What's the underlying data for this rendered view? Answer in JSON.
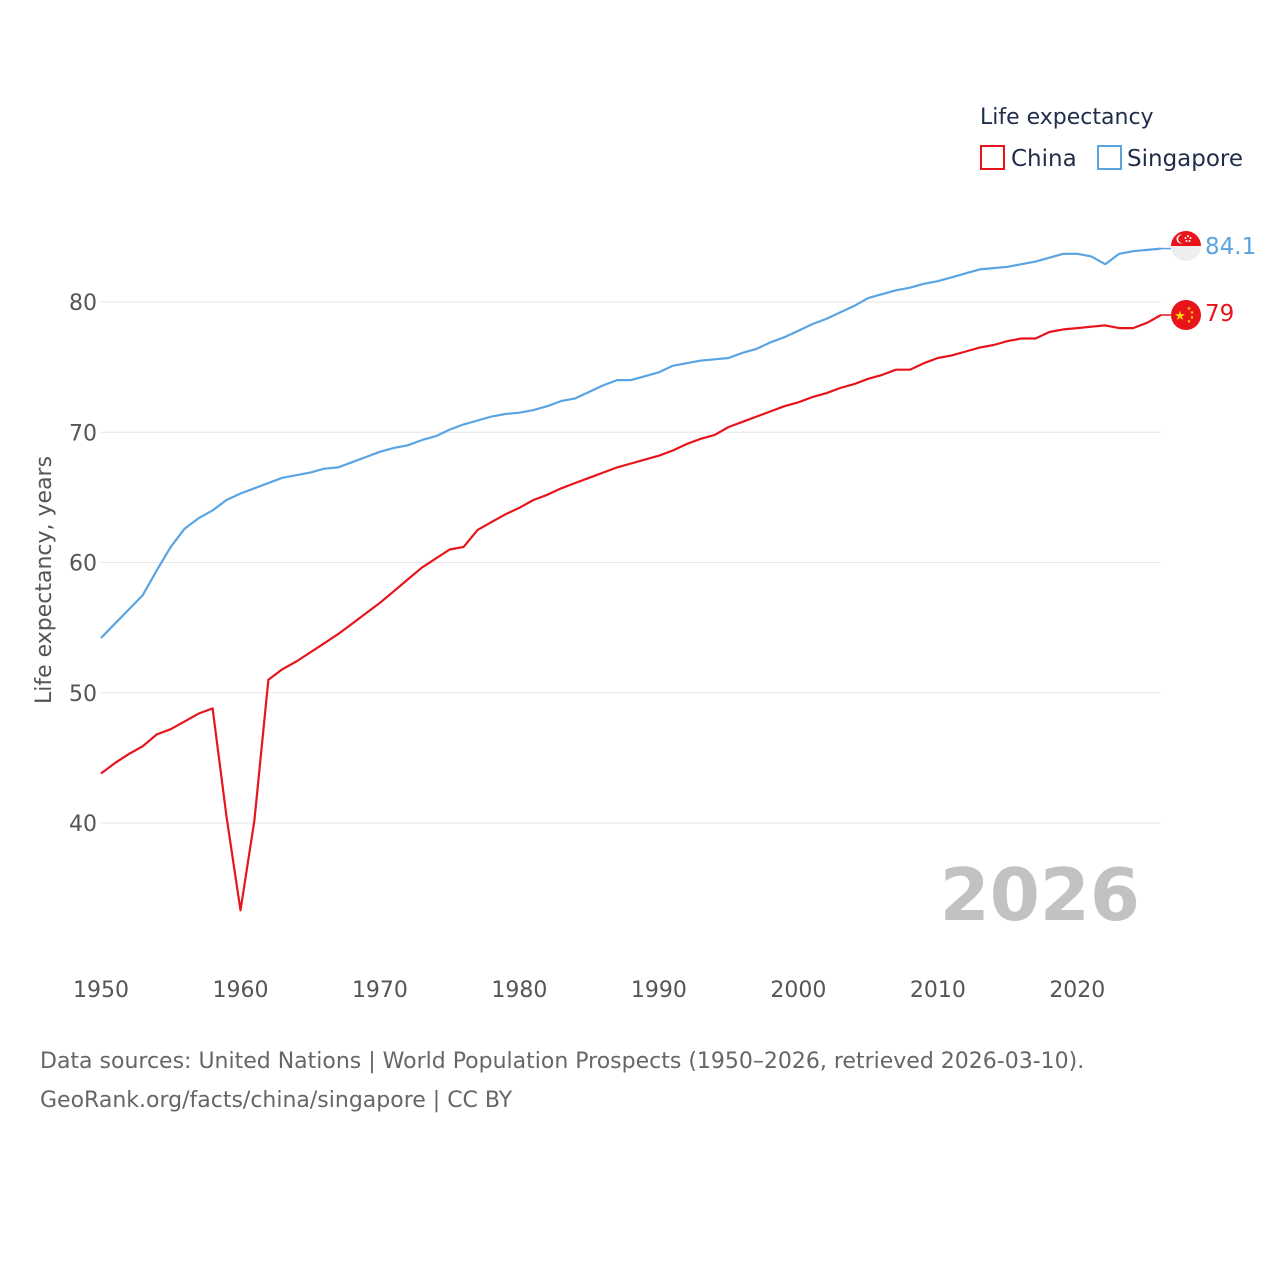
{
  "colors": {
    "china": "#e8141b",
    "singapore": "#5aa4e2",
    "grid": "#e6e6e6",
    "text": "#555555"
  },
  "chart_data": {
    "type": "line",
    "title": "",
    "xlabel": "",
    "ylabel": "Life expectancy, years",
    "xlim": [
      1950,
      2026
    ],
    "ylim": [
      32,
      86
    ],
    "x_ticks": [
      1950,
      1960,
      1970,
      1980,
      1990,
      2000,
      2010,
      2020
    ],
    "x_tick_labels": [
      "1950",
      "1960",
      "1970",
      "1980",
      "1990",
      "2000",
      "2010",
      "2020"
    ],
    "y_ticks": [
      40,
      50,
      60,
      70,
      80
    ],
    "y_tick_labels": [
      "40",
      "50",
      "60",
      "70",
      "80"
    ],
    "grid": true,
    "legend_title": "Life expectancy",
    "legend_position": "top-right",
    "year_label": "2026",
    "x": [
      1950,
      1951,
      1952,
      1953,
      1954,
      1955,
      1956,
      1957,
      1958,
      1959,
      1960,
      1961,
      1962,
      1963,
      1964,
      1965,
      1966,
      1967,
      1968,
      1969,
      1970,
      1971,
      1972,
      1973,
      1974,
      1975,
      1976,
      1977,
      1978,
      1979,
      1980,
      1981,
      1982,
      1983,
      1984,
      1985,
      1986,
      1987,
      1988,
      1989,
      1990,
      1991,
      1992,
      1993,
      1994,
      1995,
      1996,
      1997,
      1998,
      1999,
      2000,
      2001,
      2002,
      2003,
      2004,
      2005,
      2006,
      2007,
      2008,
      2009,
      2010,
      2011,
      2012,
      2013,
      2014,
      2015,
      2016,
      2017,
      2018,
      2019,
      2020,
      2021,
      2022,
      2023,
      2024,
      2025,
      2026
    ],
    "series": [
      {
        "name": "China",
        "color": "#e8141b",
        "end_label": "79",
        "values": [
          43.8,
          44.6,
          45.3,
          45.9,
          46.8,
          47.2,
          47.8,
          48.4,
          48.8,
          40.5,
          33.3,
          40.2,
          51.0,
          51.8,
          52.4,
          53.1,
          53.8,
          54.5,
          55.3,
          56.1,
          56.9,
          57.8,
          58.7,
          59.6,
          60.3,
          61.0,
          61.2,
          62.5,
          63.1,
          63.7,
          64.2,
          64.8,
          65.2,
          65.7,
          66.1,
          66.5,
          66.9,
          67.3,
          67.6,
          67.9,
          68.2,
          68.6,
          69.1,
          69.5,
          69.8,
          70.4,
          70.8,
          71.2,
          71.6,
          72.0,
          72.3,
          72.7,
          73.0,
          73.4,
          73.7,
          74.1,
          74.4,
          74.8,
          74.8,
          75.3,
          75.7,
          75.9,
          76.2,
          76.5,
          76.7,
          77.0,
          77.2,
          77.2,
          77.7,
          77.9,
          78.0,
          78.1,
          78.2,
          78.0,
          78.0,
          78.4,
          79.0
        ]
      },
      {
        "name": "Singapore",
        "color": "#5aa4e2",
        "end_label": "84.1",
        "values": [
          54.2,
          55.3,
          56.4,
          57.5,
          59.4,
          61.2,
          62.6,
          63.4,
          64.0,
          64.8,
          65.3,
          65.7,
          66.1,
          66.5,
          66.7,
          66.9,
          67.2,
          67.3,
          67.7,
          68.1,
          68.5,
          68.8,
          69.0,
          69.4,
          69.7,
          70.2,
          70.6,
          70.9,
          71.2,
          71.4,
          71.5,
          71.7,
          72.0,
          72.4,
          72.6,
          73.1,
          73.6,
          74.0,
          74.0,
          74.3,
          74.6,
          75.1,
          75.3,
          75.5,
          75.6,
          75.7,
          76.1,
          76.4,
          76.9,
          77.3,
          77.8,
          78.3,
          78.7,
          79.2,
          79.7,
          80.3,
          80.6,
          80.9,
          81.1,
          81.4,
          81.6,
          81.9,
          82.2,
          82.5,
          82.6,
          82.7,
          82.9,
          83.1,
          83.4,
          83.7,
          83.7,
          83.5,
          82.9,
          83.7,
          83.9,
          84.0,
          84.1
        ]
      }
    ]
  },
  "source": {
    "line1": "Data sources: United Nations | World Population Prospects (1950–2026, retrieved 2026-03-10).",
    "line2": "GeoRank.org/facts/china/singapore | CC BY"
  }
}
